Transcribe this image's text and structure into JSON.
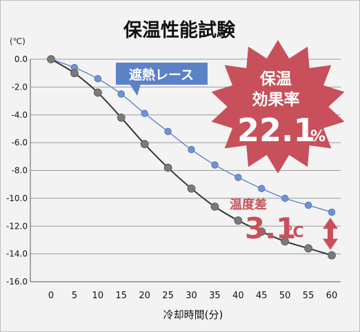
{
  "chart_data": {
    "type": "line",
    "title": "保温性能試験",
    "unit_label": "(℃)",
    "xlabel": "冷却時間(分)",
    "x": [
      0,
      5,
      10,
      15,
      20,
      25,
      30,
      35,
      40,
      45,
      50,
      55,
      60
    ],
    "xticks": [
      "0",
      "5",
      "10",
      "15",
      "20",
      "25",
      "30",
      "35",
      "40",
      "45",
      "50",
      "55",
      "60"
    ],
    "yticks": [
      "0.0",
      "-2.0",
      "-4.0",
      "-6.0",
      "-8.0",
      "-10.0",
      "-12.0",
      "-14.0",
      "-16.0"
    ],
    "ylim": [
      -16,
      0
    ],
    "xlim": [
      0,
      60
    ],
    "grid": true,
    "series": [
      {
        "name": "遮熱レース",
        "color": "#5b82c6",
        "values": [
          0.0,
          -0.6,
          -1.4,
          -2.5,
          -3.9,
          -5.2,
          -6.5,
          -7.6,
          -8.5,
          -9.3,
          -10.0,
          -10.5,
          -11.0
        ]
      },
      {
        "name": "",
        "color": "#333333",
        "values": [
          0.0,
          -1.0,
          -2.4,
          -4.2,
          -6.1,
          -7.8,
          -9.3,
          -10.6,
          -11.6,
          -12.4,
          -13.1,
          -13.6,
          -14.1
        ]
      }
    ],
    "badge": {
      "line1": "保温",
      "line2": "効果率",
      "value": "22.1",
      "unit": "%",
      "color": "#c8505a"
    },
    "difference": {
      "label": "温度差",
      "value": "3.1",
      "unit": "℃",
      "color": "#c8505a"
    }
  }
}
